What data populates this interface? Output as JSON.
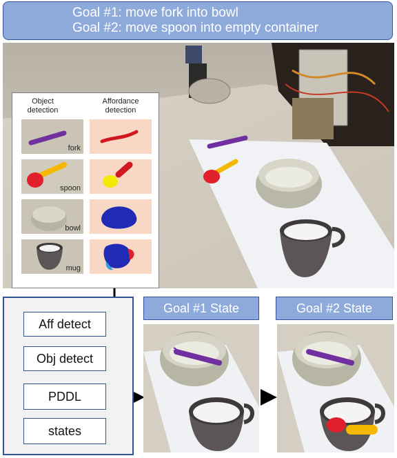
{
  "banner": {
    "goal1": "Goal #1: move fork into bowl",
    "goal2": "Goal #2: move spoon into empty container"
  },
  "inset": {
    "header_object": "Object\ndetection",
    "header_affordance": "Affordance\ndetection",
    "objects": [
      {
        "label": "fork"
      },
      {
        "label": "spoon"
      },
      {
        "label": "bowl"
      },
      {
        "label": "mug"
      }
    ]
  },
  "pipeline": {
    "aff_detect": "Aff detect",
    "obj_detect": "Obj detect",
    "pddl": "PDDL",
    "states": "states"
  },
  "goal_states": {
    "goal1": "Goal #1 State",
    "goal2": "Goal #2 State"
  },
  "colors": {
    "banner_fill": "#8eaadb",
    "border_blue": "#2f5597",
    "fork_purple": "#7030a0",
    "spoon_yellow": "#f5b800",
    "spoon_red": "#e0202a",
    "affordance_bg": "#f8d7c4",
    "affordance_blue": "#1f2bb5"
  }
}
